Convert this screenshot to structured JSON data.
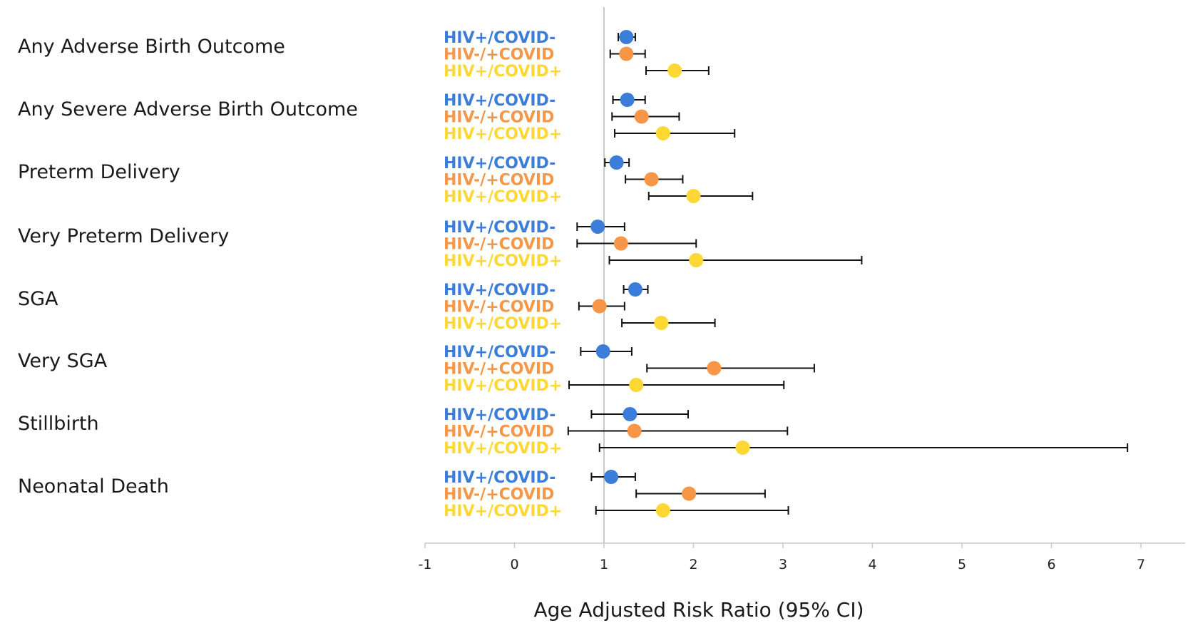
{
  "chart_data": {
    "type": "scatter",
    "subtype": "forest-plot",
    "title": "",
    "xlabel": "Age Adjusted Risk Ratio (95% CI)",
    "ylabel": "",
    "xlim": [
      -1,
      7
    ],
    "xticks": [
      "-1",
      "0",
      "1",
      "2",
      "3",
      "4",
      "5",
      "6",
      "7"
    ],
    "reference_line": 1,
    "grid": false,
    "groups": [
      {
        "name": "HIV+/COVID-",
        "color": "#3b7dd8"
      },
      {
        "name": "HIV-/+COVID",
        "color": "#f79646"
      },
      {
        "name": "HIV+/COVID+",
        "color": "#fdd835"
      }
    ],
    "outcomes": [
      {
        "label": "Any Adverse Birth Outcome",
        "estimates": [
          {
            "rr": 1.25,
            "lo": 1.16,
            "hi": 1.35
          },
          {
            "rr": 1.25,
            "lo": 1.07,
            "hi": 1.46
          },
          {
            "rr": 1.79,
            "lo": 1.47,
            "hi": 2.17
          }
        ]
      },
      {
        "label": "Any Severe Adverse Birth Outcome",
        "estimates": [
          {
            "rr": 1.26,
            "lo": 1.1,
            "hi": 1.46
          },
          {
            "rr": 1.42,
            "lo": 1.09,
            "hi": 1.84
          },
          {
            "rr": 1.66,
            "lo": 1.12,
            "hi": 2.46
          }
        ]
      },
      {
        "label": "Preterm Delivery",
        "estimates": [
          {
            "rr": 1.14,
            "lo": 1.01,
            "hi": 1.28
          },
          {
            "rr": 1.53,
            "lo": 1.24,
            "hi": 1.88
          },
          {
            "rr": 2.0,
            "lo": 1.5,
            "hi": 2.66
          }
        ]
      },
      {
        "label": "Very Preterm Delivery",
        "estimates": [
          {
            "rr": 0.93,
            "lo": 0.7,
            "hi": 1.23
          },
          {
            "rr": 1.19,
            "lo": 0.7,
            "hi": 2.03
          },
          {
            "rr": 2.03,
            "lo": 1.06,
            "hi": 3.88
          }
        ]
      },
      {
        "label": "SGA",
        "estimates": [
          {
            "rr": 1.35,
            "lo": 1.22,
            "hi": 1.49
          },
          {
            "rr": 0.95,
            "lo": 0.72,
            "hi": 1.23
          },
          {
            "rr": 1.64,
            "lo": 1.2,
            "hi": 2.24
          }
        ]
      },
      {
        "label": "Very SGA",
        "estimates": [
          {
            "rr": 0.99,
            "lo": 0.74,
            "hi": 1.31
          },
          {
            "rr": 2.23,
            "lo": 1.48,
            "hi": 3.35
          },
          {
            "rr": 1.36,
            "lo": 0.61,
            "hi": 3.01
          }
        ]
      },
      {
        "label": "Stillbirth",
        "estimates": [
          {
            "rr": 1.29,
            "lo": 0.86,
            "hi": 1.94
          },
          {
            "rr": 1.34,
            "lo": 0.6,
            "hi": 3.05
          },
          {
            "rr": 2.55,
            "lo": 0.95,
            "hi": 6.85
          }
        ]
      },
      {
        "label": "Neonatal Death",
        "estimates": [
          {
            "rr": 1.08,
            "lo": 0.86,
            "hi": 1.35
          },
          {
            "rr": 1.95,
            "lo": 1.36,
            "hi": 2.8
          },
          {
            "rr": 1.66,
            "lo": 0.91,
            "hi": 3.06
          }
        ]
      }
    ]
  }
}
